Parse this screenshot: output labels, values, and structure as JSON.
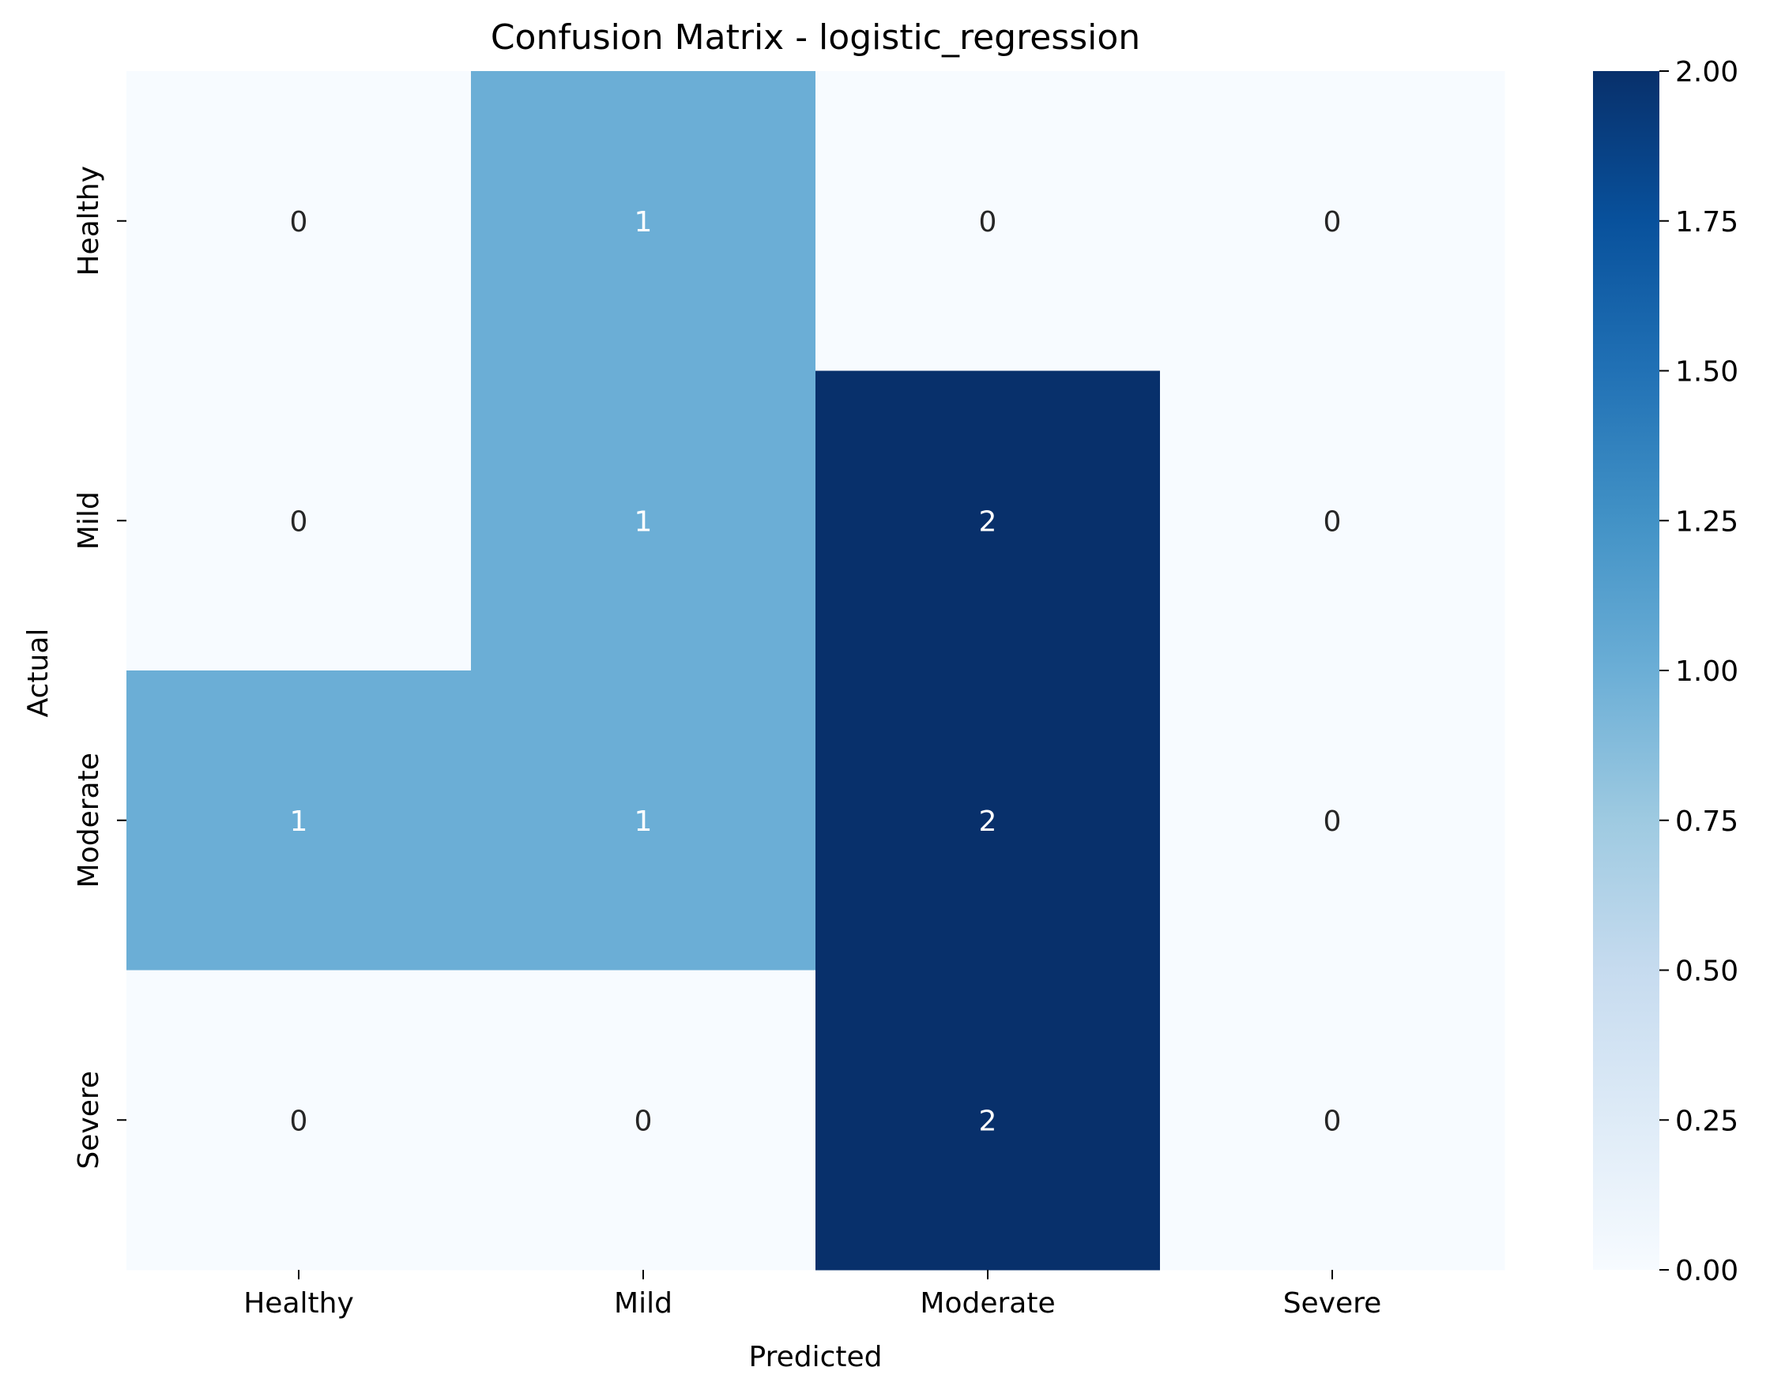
{
  "chart_data": {
    "type": "heatmap",
    "title": "Confusion Matrix - logistic_regression",
    "xlabel": "Predicted",
    "ylabel": "Actual",
    "x_categories": [
      "Healthy",
      "Mild",
      "Moderate",
      "Severe"
    ],
    "y_categories": [
      "Healthy",
      "Mild",
      "Moderate",
      "Severe"
    ],
    "values": [
      [
        0,
        1,
        0,
        0
      ],
      [
        0,
        1,
        2,
        0
      ],
      [
        1,
        1,
        2,
        0
      ],
      [
        0,
        0,
        2,
        0
      ]
    ],
    "colormap": "Blues",
    "colorbar": {
      "range": [
        0,
        2
      ],
      "ticks": [
        "0.00",
        "0.25",
        "0.50",
        "0.75",
        "1.00",
        "1.25",
        "1.50",
        "1.75",
        "2.00"
      ]
    },
    "colors": {
      "zero": "#f7fbff",
      "one": "#6baed6",
      "two": "#08306b"
    }
  }
}
